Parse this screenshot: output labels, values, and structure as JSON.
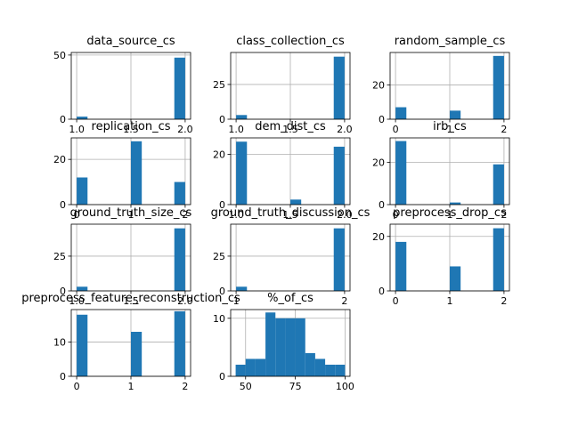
{
  "chart_data": [
    {
      "type": "bar",
      "title": "data_source_cs",
      "xticks": [
        "1.0",
        "1.5",
        "2.0"
      ],
      "yticks": [
        "0",
        "50"
      ],
      "xlim": [
        0.95,
        2.05
      ],
      "ylim": [
        0,
        52
      ],
      "bars": [
        {
          "x0": 1.0,
          "x1": 1.1,
          "count": 2
        },
        {
          "x0": 1.9,
          "x1": 2.0,
          "count": 48
        }
      ]
    },
    {
      "type": "bar",
      "title": "class_collection_cs",
      "xticks": [
        "1.0",
        "1.5",
        "2.0"
      ],
      "yticks": [
        "0",
        "25"
      ],
      "xlim": [
        0.95,
        2.05
      ],
      "ylim": [
        0,
        48
      ],
      "bars": [
        {
          "x0": 1.0,
          "x1": 1.1,
          "count": 3
        },
        {
          "x0": 1.9,
          "x1": 2.0,
          "count": 45
        }
      ]
    },
    {
      "type": "bar",
      "title": "random_sample_cs",
      "xticks": [
        "0",
        "1",
        "2"
      ],
      "yticks": [
        "0",
        "20"
      ],
      "xlim": [
        -0.1,
        2.1
      ],
      "ylim": [
        0,
        39
      ],
      "bars": [
        {
          "x0": 0.0,
          "x1": 0.2,
          "count": 7
        },
        {
          "x0": 1.0,
          "x1": 1.2,
          "count": 5
        },
        {
          "x0": 1.8,
          "x1": 2.0,
          "count": 37
        }
      ]
    },
    {
      "type": "bar",
      "title": "replication_cs",
      "xticks": [
        "0",
        "1",
        "2"
      ],
      "yticks": [
        "0",
        "20"
      ],
      "xlim": [
        -0.1,
        2.1
      ],
      "ylim": [
        0,
        29.5
      ],
      "bars": [
        {
          "x0": 0.0,
          "x1": 0.2,
          "count": 12
        },
        {
          "x0": 1.0,
          "x1": 1.2,
          "count": 28
        },
        {
          "x0": 1.8,
          "x1": 2.0,
          "count": 10
        }
      ]
    },
    {
      "type": "bar",
      "title": "dem_dist_cs",
      "xticks": [
        "1.0",
        "1.5",
        "2.0"
      ],
      "yticks": [
        "0",
        "20"
      ],
      "xlim": [
        0.95,
        2.05
      ],
      "ylim": [
        0,
        26.5
      ],
      "bars": [
        {
          "x0": 1.0,
          "x1": 1.1,
          "count": 25
        },
        {
          "x0": 1.5,
          "x1": 1.6,
          "count": 2
        },
        {
          "x0": 1.9,
          "x1": 2.0,
          "count": 23
        }
      ]
    },
    {
      "type": "bar",
      "title": "irb_cs",
      "xticks": [
        "0",
        "1",
        "2"
      ],
      "yticks": [
        "0",
        "20"
      ],
      "xlim": [
        -0.1,
        2.1
      ],
      "ylim": [
        0,
        31.5
      ],
      "bars": [
        {
          "x0": 0.0,
          "x1": 0.2,
          "count": 30
        },
        {
          "x0": 1.0,
          "x1": 1.2,
          "count": 1
        },
        {
          "x0": 1.8,
          "x1": 2.0,
          "count": 19
        }
      ]
    },
    {
      "type": "bar",
      "title": "ground_truth_size_cs",
      "xticks": [
        "1.0",
        "1.5",
        "2.0"
      ],
      "yticks": [
        "0",
        "25"
      ],
      "xlim": [
        0.95,
        2.05
      ],
      "ylim": [
        0,
        48
      ],
      "bars": [
        {
          "x0": 1.0,
          "x1": 1.1,
          "count": 3
        },
        {
          "x0": 1.9,
          "x1": 2.0,
          "count": 45
        }
      ]
    },
    {
      "type": "bar",
      "title": "ground_truth_discussion_cs",
      "xticks": [
        "1",
        "2"
      ],
      "yticks": [
        "0",
        "25"
      ],
      "xlim": [
        0.95,
        2.05
      ],
      "ylim": [
        0,
        48
      ],
      "bars": [
        {
          "x0": 1.0,
          "x1": 1.1,
          "count": 3
        },
        {
          "x0": 1.9,
          "x1": 2.0,
          "count": 45
        }
      ]
    },
    {
      "type": "bar",
      "title": "preprocess_drop_cs",
      "xticks": [
        "0",
        "1",
        "2"
      ],
      "yticks": [
        "0",
        "20"
      ],
      "xlim": [
        -0.1,
        2.1
      ],
      "ylim": [
        0,
        24.5
      ],
      "bars": [
        {
          "x0": 0.0,
          "x1": 0.2,
          "count": 18
        },
        {
          "x0": 1.0,
          "x1": 1.2,
          "count": 9
        },
        {
          "x0": 1.8,
          "x1": 2.0,
          "count": 23
        }
      ]
    },
    {
      "type": "bar",
      "title": "preprocess_feature_reconstruction_cs",
      "xticks": [
        "0",
        "1",
        "2"
      ],
      "yticks": [
        "0",
        "10"
      ],
      "xlim": [
        -0.1,
        2.1
      ],
      "ylim": [
        0,
        19.5
      ],
      "bars": [
        {
          "x0": 0.0,
          "x1": 0.2,
          "count": 18
        },
        {
          "x0": 1.0,
          "x1": 1.2,
          "count": 13
        },
        {
          "x0": 1.8,
          "x1": 2.0,
          "count": 19
        }
      ]
    },
    {
      "type": "bar",
      "title": "%_of_cs",
      "xticks": [
        "50",
        "75",
        "100"
      ],
      "yticks": [
        "0",
        "10"
      ],
      "xlim": [
        42.5,
        102.5
      ],
      "ylim": [
        0,
        11.5
      ],
      "bars": [
        {
          "x0": 45,
          "x1": 50,
          "count": 2
        },
        {
          "x0": 50,
          "x1": 55,
          "count": 3
        },
        {
          "x0": 55,
          "x1": 60,
          "count": 3
        },
        {
          "x0": 60,
          "x1": 65,
          "count": 11
        },
        {
          "x0": 65,
          "x1": 70,
          "count": 10
        },
        {
          "x0": 70,
          "x1": 75,
          "count": 10
        },
        {
          "x0": 75,
          "x1": 80,
          "count": 10
        },
        {
          "x0": 80,
          "x1": 85,
          "count": 4
        },
        {
          "x0": 85,
          "x1": 90,
          "count": 3
        },
        {
          "x0": 90,
          "x1": 95,
          "count": 2
        },
        {
          "x0": 95,
          "x1": 100,
          "count": 2
        }
      ]
    }
  ],
  "colors": {
    "bar": "#1f77b4",
    "grid": "#b0b0b0",
    "axis": "#000000"
  }
}
